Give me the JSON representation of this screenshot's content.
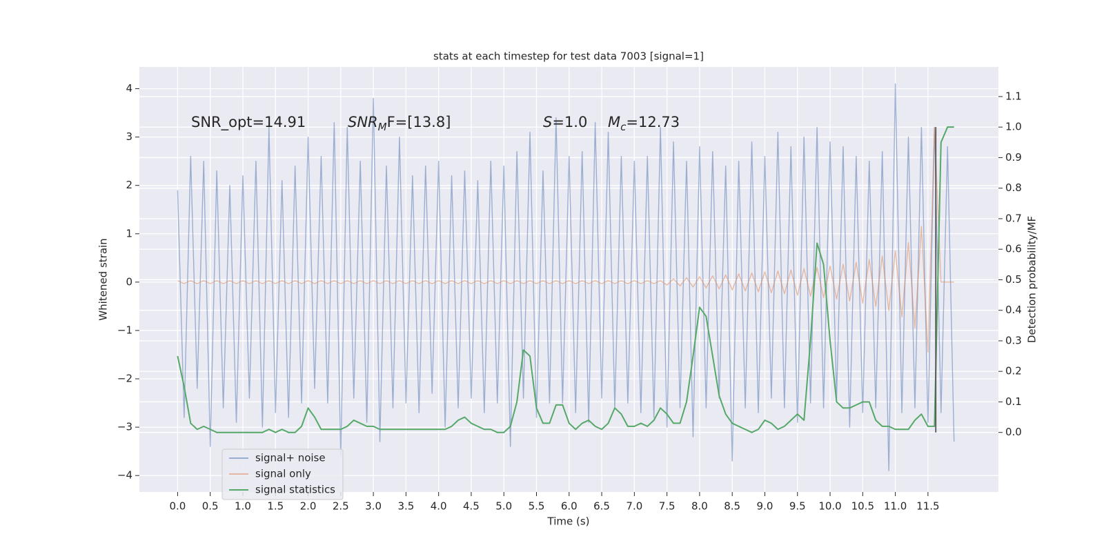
{
  "chart_data": {
    "type": "line",
    "title": "stats at each timestep for test data 7003 [signal=1]",
    "x_label": "Time (s)",
    "y_label": "Whitened strain",
    "y2_label": "Detection probability/MF",
    "grid": true,
    "legend": "lower left",
    "xlim": [
      -0.586,
      12.58
    ],
    "ylim": [
      -4.34,
      4.45
    ],
    "y2lim": [
      -0.195,
      1.197
    ],
    "xticks": [
      {
        "value": 0,
        "label": "0.0"
      },
      {
        "value": 0.5,
        "label": "0.5"
      },
      {
        "value": 1,
        "label": "1.0"
      },
      {
        "value": 1.5,
        "label": "1.5"
      },
      {
        "value": 2,
        "label": "2.0"
      },
      {
        "value": 2.5,
        "label": "2.5"
      },
      {
        "value": 3,
        "label": "3.0"
      },
      {
        "value": 3.5,
        "label": "3.5"
      },
      {
        "value": 4,
        "label": "4.0"
      },
      {
        "value": 4.5,
        "label": "4.5"
      },
      {
        "value": 5,
        "label": "5.0"
      },
      {
        "value": 5.5,
        "label": "5.5"
      },
      {
        "value": 6,
        "label": "6.0"
      },
      {
        "value": 6.5,
        "label": "6.5"
      },
      {
        "value": 7,
        "label": "7.0"
      },
      {
        "value": 7.5,
        "label": "7.5"
      },
      {
        "value": 8,
        "label": "8.0"
      },
      {
        "value": 8.5,
        "label": "8.5"
      },
      {
        "value": 9,
        "label": "9.0"
      },
      {
        "value": 9.5,
        "label": "9.5"
      },
      {
        "value": 10,
        "label": "10.0"
      },
      {
        "value": 10.5,
        "label": "10.5"
      },
      {
        "value": 11,
        "label": "11.0"
      },
      {
        "value": 11.5,
        "label": "11.5"
      }
    ],
    "yticks": [
      {
        "value": -4,
        "label": "−4"
      },
      {
        "value": -3,
        "label": "−3"
      },
      {
        "value": -2,
        "label": "−2"
      },
      {
        "value": -1,
        "label": "−1"
      },
      0,
      1,
      2,
      3,
      4
    ],
    "y2ticks": [
      {
        "value": 0,
        "label": "0.0"
      },
      {
        "value": 0.1,
        "label": "0.1"
      },
      {
        "value": 0.2,
        "label": "0.2"
      },
      {
        "value": 0.3,
        "label": "0.3"
      },
      {
        "value": 0.4,
        "label": "0.4"
      },
      {
        "value": 0.5,
        "label": "0.5"
      },
      {
        "value": 0.6,
        "label": "0.6"
      },
      {
        "value": 0.7,
        "label": "0.7"
      },
      {
        "value": 0.8,
        "label": "0.8"
      },
      {
        "value": 0.9,
        "label": "0.9"
      },
      {
        "value": 1.0,
        "label": "1.0"
      },
      {
        "value": 1.1,
        "label": "1.1"
      }
    ],
    "annotations": [
      {
        "text": "SNR_opt=14.91",
        "italic": false
      },
      {
        "text": "SNR",
        "sub": "M",
        "rest": "F=[13.8]",
        "italic": true
      },
      {
        "text": "S",
        "rest": "=1.0",
        "italic": true
      },
      {
        "text": "M",
        "sub": "c",
        "rest": "=12.73",
        "italic": true
      }
    ],
    "x": [
      0,
      0.1,
      0.2,
      0.3,
      0.4,
      0.5,
      0.6,
      0.7,
      0.8,
      0.9,
      1,
      1.1,
      1.2,
      1.3,
      1.4,
      1.5,
      1.6,
      1.7,
      1.8,
      1.9,
      2,
      2.1,
      2.2,
      2.3,
      2.4,
      2.5,
      2.6,
      2.7,
      2.8,
      2.9,
      3,
      3.1,
      3.2,
      3.3,
      3.4,
      3.5,
      3.6,
      3.7,
      3.8,
      3.9,
      4,
      4.1,
      4.2,
      4.3,
      4.4,
      4.5,
      4.6,
      4.7,
      4.8,
      4.9,
      5,
      5.1,
      5.2,
      5.3,
      5.4,
      5.5,
      5.6,
      5.7,
      5.8,
      5.9,
      6,
      6.1,
      6.2,
      6.3,
      6.4,
      6.5,
      6.6,
      6.7,
      6.8,
      6.9,
      7,
      7.1,
      7.2,
      7.3,
      7.4,
      7.5,
      7.6,
      7.7,
      7.8,
      7.9,
      8,
      8.1,
      8.2,
      8.3,
      8.4,
      8.5,
      8.6,
      8.7,
      8.8,
      8.9,
      9,
      9.1,
      9.2,
      9.3,
      9.4,
      9.5,
      9.6,
      9.7,
      9.8,
      9.9,
      10,
      10.1,
      10.2,
      10.3,
      10.4,
      10.5,
      10.6,
      10.7,
      10.8,
      10.9,
      11,
      11.1,
      11.2,
      11.3,
      11.4,
      11.5,
      11.6,
      11.7,
      11.8,
      11.9
    ],
    "series": [
      {
        "name": "signal+ noise",
        "color": "#4c72b0",
        "opacity": 0.5,
        "values": [
          1.9,
          -2.8,
          2.6,
          -2.2,
          2.5,
          -3.4,
          2.3,
          -2.6,
          2.0,
          -2.9,
          2.2,
          -2.4,
          2.5,
          -3.0,
          3.2,
          -2.7,
          2.1,
          -2.8,
          2.4,
          -2.5,
          3.0,
          -2.2,
          2.6,
          -2.5,
          3.3,
          -3.6,
          3.2,
          -2.4,
          2.5,
          -2.9,
          3.8,
          -3.3,
          2.4,
          -2.6,
          3.0,
          -2.5,
          2.2,
          -2.7,
          2.4,
          -2.3,
          2.5,
          -3.0,
          2.2,
          -2.6,
          2.3,
          -2.4,
          2.1,
          -2.7,
          2.5,
          -2.5,
          2.4,
          -3.4,
          2.7,
          -2.4,
          3.1,
          -2.8,
          2.3,
          -2.5,
          3.4,
          -2.5,
          2.6,
          -2.7,
          2.7,
          -2.9,
          3.3,
          -2.4,
          3.1,
          -2.6,
          2.6,
          -2.5,
          2.5,
          -2.7,
          2.6,
          -2.8,
          3.2,
          -3.0,
          2.9,
          -2.6,
          2.5,
          -3.2,
          2.8,
          -2.6,
          2.7,
          -2.4,
          2.4,
          -3.7,
          2.5,
          -2.6,
          2.9,
          -2.7,
          2.6,
          -2.4,
          3.1,
          -2.6,
          2.8,
          -2.9,
          3.0,
          -2.5,
          3.2,
          -2.6,
          2.9,
          -2.4,
          2.8,
          -3.0,
          2.6,
          -2.7,
          2.5,
          -2.6,
          2.7,
          -3.9,
          4.1,
          -2.7,
          3.0,
          -2.6,
          3.2,
          -2.9,
          3.2,
          -2.7,
          2.8,
          -3.3
        ]
      },
      {
        "name": "signal only",
        "color": "#dd8452",
        "opacity": 0.5,
        "values": [
          0.03,
          -0.03,
          0.03,
          -0.03,
          0.03,
          -0.03,
          0.03,
          -0.03,
          0.03,
          -0.03,
          0.03,
          -0.03,
          0.03,
          -0.03,
          0.03,
          -0.03,
          0.03,
          -0.03,
          0.03,
          -0.03,
          0.03,
          -0.03,
          0.03,
          -0.03,
          0.03,
          -0.03,
          0.03,
          -0.03,
          0.03,
          -0.03,
          0.03,
          -0.03,
          0.03,
          -0.03,
          0.03,
          -0.03,
          0.03,
          -0.03,
          0.03,
          -0.03,
          0.03,
          -0.03,
          0.03,
          -0.03,
          0.03,
          -0.03,
          0.03,
          -0.03,
          0.03,
          -0.03,
          0.03,
          -0.03,
          0.03,
          -0.03,
          0.03,
          -0.03,
          0.03,
          -0.03,
          0.03,
          -0.03,
          0.03,
          -0.03,
          0.03,
          -0.03,
          0.03,
          -0.03,
          0.03,
          -0.03,
          0.03,
          -0.03,
          0.03,
          -0.03,
          0.03,
          -0.03,
          0.03,
          -0.06,
          0.07,
          -0.08,
          0.09,
          -0.1,
          0.11,
          -0.12,
          0.13,
          -0.14,
          0.15,
          -0.16,
          0.17,
          -0.18,
          0.19,
          -0.2,
          0.21,
          -0.22,
          0.23,
          -0.24,
          0.25,
          -0.27,
          0.28,
          -0.29,
          0.3,
          -0.32,
          0.33,
          -0.35,
          0.37,
          -0.39,
          0.41,
          -0.44,
          0.47,
          -0.5,
          0.54,
          -0.59,
          0.65,
          -0.72,
          0.82,
          -0.95,
          1.15,
          -1.45,
          3.2,
          0,
          0,
          0
        ]
      },
      {
        "name": "signal statistics",
        "color": "#55a868",
        "axis": "y2",
        "values": [
          0.25,
          0.15,
          0.03,
          0.01,
          0.02,
          0.01,
          0.0,
          0.0,
          0.0,
          0.0,
          0.0,
          0.0,
          0.0,
          0.0,
          0.01,
          0.0,
          0.01,
          0.0,
          0.0,
          0.02,
          0.08,
          0.05,
          0.01,
          0.01,
          0.01,
          0.01,
          0.02,
          0.04,
          0.03,
          0.02,
          0.02,
          0.01,
          0.01,
          0.01,
          0.01,
          0.01,
          0.01,
          0.01,
          0.01,
          0.01,
          0.01,
          0.01,
          0.02,
          0.04,
          0.05,
          0.03,
          0.02,
          0.01,
          0.01,
          0.0,
          0.0,
          0.02,
          0.1,
          0.27,
          0.25,
          0.08,
          0.03,
          0.03,
          0.09,
          0.09,
          0.03,
          0.01,
          0.03,
          0.04,
          0.02,
          0.01,
          0.03,
          0.08,
          0.06,
          0.02,
          0.02,
          0.03,
          0.02,
          0.04,
          0.08,
          0.06,
          0.03,
          0.03,
          0.1,
          0.25,
          0.41,
          0.38,
          0.25,
          0.12,
          0.06,
          0.03,
          0.02,
          0.01,
          0.0,
          0.01,
          0.04,
          0.03,
          0.01,
          0.02,
          0.04,
          0.06,
          0.04,
          0.3,
          0.62,
          0.55,
          0.3,
          0.1,
          0.08,
          0.08,
          0.09,
          0.1,
          0.1,
          0.04,
          0.02,
          0.02,
          0.01,
          0.01,
          0.01,
          0.04,
          0.06,
          0.02,
          0.02,
          0.95,
          1.0,
          1.0
        ]
      }
    ],
    "vline": {
      "x": 11.62,
      "values": [
        0,
        1
      ],
      "color": "#555555",
      "axis": "y2"
    }
  }
}
